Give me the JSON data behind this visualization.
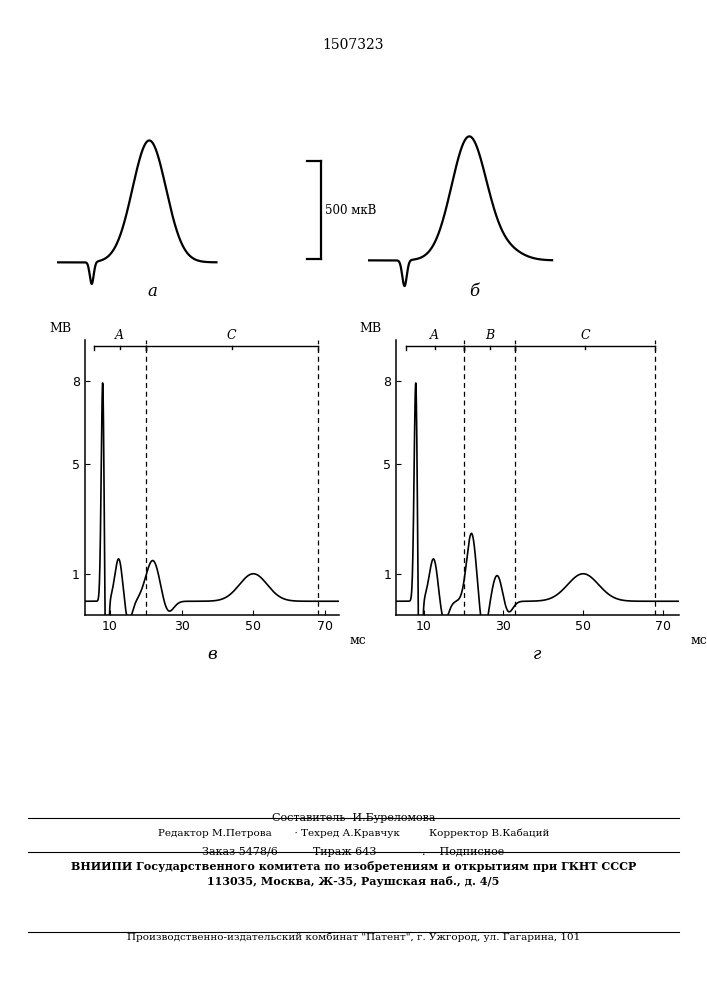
{
  "title": "1507323",
  "scale_label": "500 мкВ",
  "label_alpha": "а",
  "label_b": "б",
  "label_V": "в",
  "label_g": "г",
  "ylabel": "МВ",
  "xlabel": "мс",
  "yticks": [
    1,
    5,
    8
  ],
  "xticks": [
    10,
    30,
    50,
    70
  ],
  "left_dashed_x1": 20,
  "left_dashed_x2": 68,
  "right_dashed_x1": 20,
  "right_dashed_x2": 33,
  "right_dashed_x3": 68,
  "footer_line0": "Составитель  И.Буреломова",
  "footer_line1": "Редактор М.Петрова       · Техред А.Кравчук         Корректор В.Кабаций",
  "footer_line2": "Заказ 5478/6          Тираж 643             .    Подписное",
  "footer_line3": "ВНИИПИ Государственного комитета по изобретениям и открытиям при ГКНТ СССР",
  "footer_line4": "113035, Москва, Ж-35, Раушская наб., д. 4/5",
  "footer_line5": "Производственно-издательский комбинат \"Патент\", г. Ужгород, ул. Гагарина, 101",
  "bg_color": "#ffffff",
  "line_color": "#000000"
}
